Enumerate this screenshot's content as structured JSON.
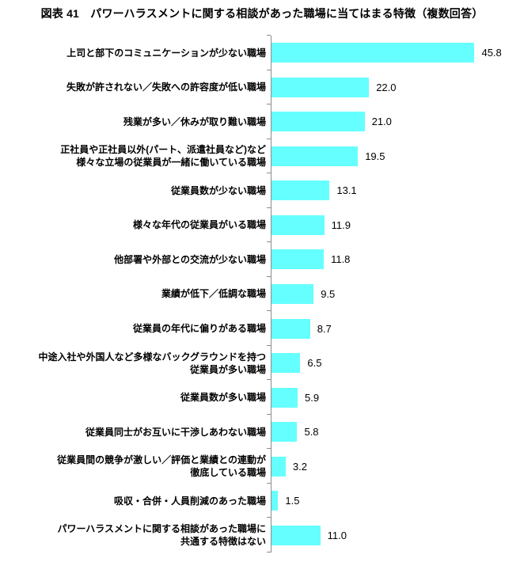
{
  "title": "図表 41　パワーハラスメントに関する相談があった職場に当てはまる特徴（複数回答）",
  "chart_data": {
    "type": "bar",
    "orientation": "horizontal",
    "title": "図表 41　パワーハラスメントに関する相談があった職場に当てはまる特徴（複数回答）",
    "categories": [
      "上司と部下のコミュニケーションが少ない職場",
      "失敗が許されない／失敗への許容度が低い職場",
      "残業が多い／休みが取り難い職場",
      "正社員や正社員以外(パート、派遣社員など)など\n様々な立場の従業員が一緒に働いている職場",
      "従業員数が少ない職場",
      "様々な年代の従業員がいる職場",
      "他部署や外部との交流が少ない職場",
      "業績が低下／低調な職場",
      "従業員の年代に偏りがある職場",
      "中途入社や外国人など多様なバックグラウンドを持つ\n従業員が多い職場",
      "従業員数が多い職場",
      "従業員同士がお互いに干渉しあわない職場",
      "従業員間の競争が激しい／評価と業績との連動が\n徹底している職場",
      "吸収・合併・人員削減のあった職場",
      "パワーハラスメントに関する相談があった職場に\n共通する特徴はない"
    ],
    "values": [
      45.8,
      22.0,
      21.0,
      19.5,
      13.1,
      11.9,
      11.8,
      9.5,
      8.7,
      6.5,
      5.9,
      5.8,
      3.2,
      1.5,
      11.0
    ],
    "value_labels": [
      "45.8",
      "22.0",
      "21.0",
      "19.5",
      "13.1",
      "11.9",
      "11.8",
      "9.5",
      "8.7",
      "6.5",
      "5.9",
      "5.8",
      "3.2",
      "1.5",
      "11.0"
    ],
    "xlim": [
      0,
      50
    ],
    "bar_color": "#66FFFF",
    "axis_color": "#8C8C8C",
    "data_labels": "outside-end",
    "grid": false,
    "legend": false
  }
}
